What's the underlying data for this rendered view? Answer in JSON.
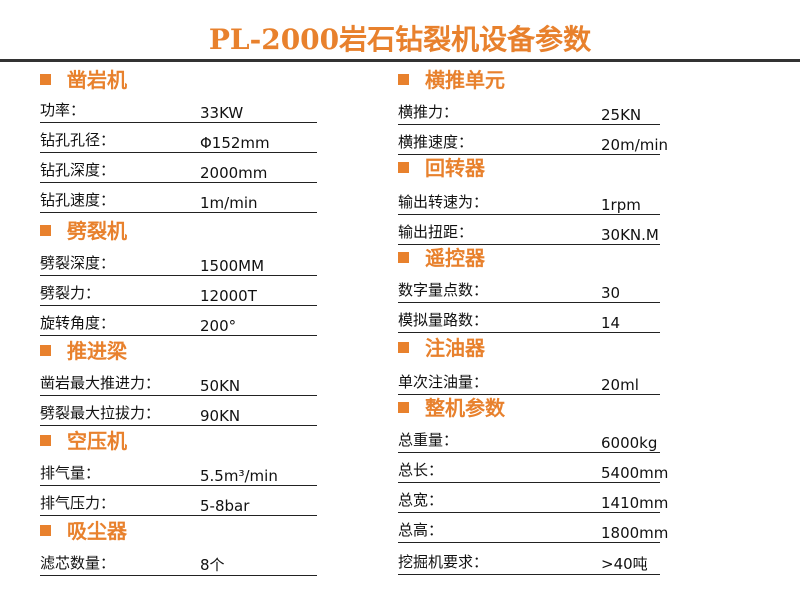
{
  "title": "PL-2000岩石钻裂机设备参数",
  "colors": {
    "accent": "#e8812d",
    "rule": "#333333"
  },
  "left": [
    {
      "heading": "凿岩机",
      "rows": [
        {
          "k": "功率：",
          "v": "33KW"
        },
        {
          "k": "钻孔孔径：",
          "v": "Φ152mm"
        },
        {
          "k": "钻孔深度：",
          "v": "2000mm"
        },
        {
          "k": "钻孔速度：",
          "v": "1m/min"
        }
      ]
    },
    {
      "heading": "劈裂机",
      "rows": [
        {
          "k": "劈裂深度：",
          "v": "1500MM"
        },
        {
          "k": "劈裂力：",
          "v": "12000T"
        },
        {
          "k": "旋转角度：",
          "v": "200°"
        }
      ]
    },
    {
      "heading": "推进梁",
      "rows": [
        {
          "k": "凿岩最大推进力：",
          "v": "50KN"
        },
        {
          "k": "劈裂最大拉拔力：",
          "v": "90KN"
        }
      ]
    },
    {
      "heading": "空压机",
      "rows": [
        {
          "k": "排气量：",
          "v": "5.5m³/min"
        },
        {
          "k": "排气压力：",
          "v": "5-8bar"
        }
      ]
    },
    {
      "heading": "吸尘器",
      "rows": [
        {
          "k": "滤芯数量：",
          "v": "8个"
        }
      ]
    }
  ],
  "right": [
    {
      "heading": "横推单元",
      "rows": [
        {
          "k": "横推力：",
          "v": "25KN"
        },
        {
          "k": "横推速度：",
          "v": "20m/min"
        }
      ]
    },
    {
      "heading": "回转器",
      "rows": [
        {
          "k": "输出转速为：",
          "v": "1rpm"
        },
        {
          "k": "输出扭距：",
          "v": "30KN.M"
        }
      ]
    },
    {
      "heading": "遥控器",
      "rows": [
        {
          "k": "数字量点数：",
          "v": "30"
        },
        {
          "k": "模拟量路数：",
          "v": "14"
        }
      ]
    },
    {
      "heading": "注油器",
      "rows": [
        {
          "k": "单次注油量：",
          "v": "20ml"
        }
      ]
    },
    {
      "heading": "整机参数",
      "rows": [
        {
          "k": "总重量：",
          "v": "6000kg"
        },
        {
          "k": "总长：",
          "v": "5400mm"
        },
        {
          "k": "总宽：",
          "v": "1410mm"
        },
        {
          "k": "总高：",
          "v": "1800mm"
        },
        {
          "k": "挖掘机要求：",
          "v": ">40吨"
        }
      ]
    }
  ]
}
